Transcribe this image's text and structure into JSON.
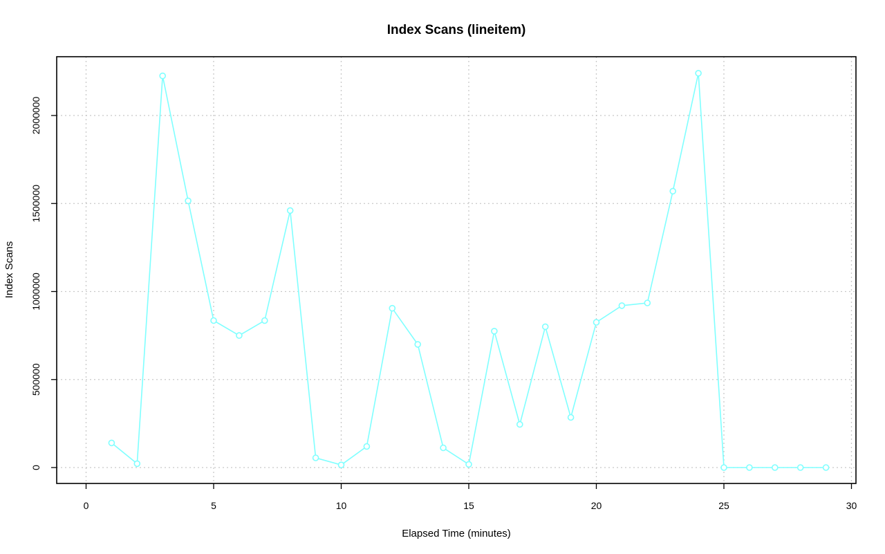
{
  "chart_data": {
    "type": "line",
    "title": "Index Scans (lineitem)",
    "xlabel": "Elapsed Time (minutes)",
    "ylabel": "Index Scans",
    "xlim": [
      0,
      30
    ],
    "ylim": [
      0,
      2250000
    ],
    "x_ticks": [
      0,
      5,
      10,
      15,
      20,
      25,
      30
    ],
    "y_ticks": [
      0,
      500000,
      1000000,
      1500000,
      2000000
    ],
    "grid": true,
    "color": "#7fffff",
    "x": [
      1,
      2,
      3,
      4,
      5,
      6,
      7,
      8,
      9,
      10,
      11,
      12,
      13,
      14,
      15,
      16,
      17,
      18,
      19,
      20,
      21,
      22,
      23,
      24,
      25,
      26,
      27,
      28,
      29
    ],
    "values": [
      140000,
      22000,
      2225000,
      1515000,
      835000,
      750000,
      835000,
      1460000,
      55000,
      15000,
      120000,
      905000,
      700000,
      112000,
      18000,
      775000,
      245000,
      800000,
      285000,
      825000,
      920000,
      935000,
      1570000,
      2240000,
      0,
      0,
      0,
      0,
      0
    ]
  }
}
